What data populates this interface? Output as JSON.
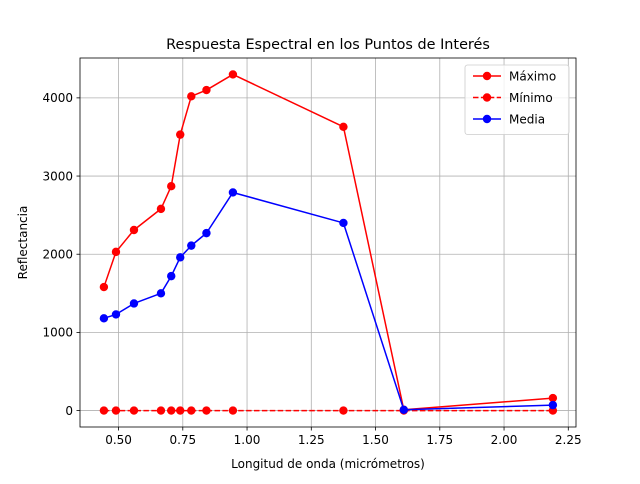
{
  "chart_data": {
    "type": "line",
    "title": "Respuesta Espectral en los Puntos de Interés",
    "xlabel": "Longitud de onda (micrómetros)",
    "ylabel": "Reflectancia",
    "xlim": [
      0.35,
      2.28
    ],
    "ylim": [
      -210,
      4510
    ],
    "xticks": [
      0.5,
      0.75,
      1.0,
      1.25,
      1.5,
      1.75,
      2.0,
      2.25
    ],
    "xtick_labels": [
      "0.50",
      "0.75",
      "1.00",
      "1.25",
      "1.50",
      "1.75",
      "2.00",
      "2.25"
    ],
    "yticks": [
      0,
      1000,
      2000,
      3000,
      4000
    ],
    "ytick_labels": [
      "0",
      "1000",
      "2000",
      "3000",
      "4000"
    ],
    "grid": true,
    "legend_position": "top-right",
    "x": [
      0.443,
      0.49,
      0.56,
      0.665,
      0.705,
      0.74,
      0.783,
      0.842,
      0.945,
      1.375,
      1.61,
      2.19
    ],
    "series": [
      {
        "name": "Máximo",
        "color": "#ff0000",
        "line_style": "solid",
        "marker": "circle",
        "values": [
          1580,
          2030,
          2310,
          2580,
          2870,
          3530,
          4020,
          4100,
          4300,
          3630,
          10,
          160
        ]
      },
      {
        "name": "Mínimo",
        "color": "#ff0000",
        "line_style": "dashed",
        "marker": "circle",
        "values": [
          0,
          0,
          0,
          0,
          0,
          0,
          0,
          0,
          0,
          0,
          0,
          0
        ]
      },
      {
        "name": "Media",
        "color": "#0000ff",
        "line_style": "solid",
        "marker": "circle",
        "values": [
          1180,
          1230,
          1370,
          1500,
          1720,
          1960,
          2110,
          2270,
          2790,
          2400,
          10,
          70
        ]
      }
    ]
  }
}
